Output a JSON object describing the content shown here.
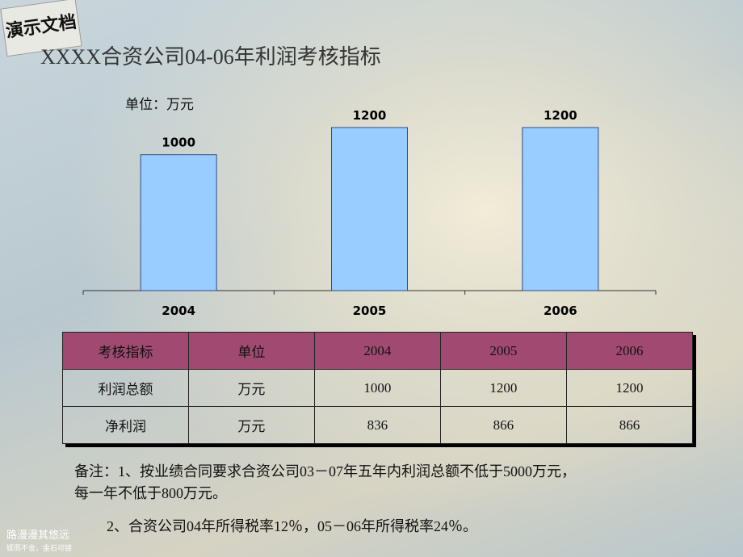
{
  "logo": "演示文档",
  "chart_data": {
    "type": "bar",
    "title": "XXXX合资公司04-06年利润考核指标",
    "unit_label": "单位：万元",
    "categories": [
      "2004",
      "2005",
      "2006"
    ],
    "values": [
      1000,
      1200,
      1200
    ],
    "color": "#99ccff"
  },
  "table": {
    "header": [
      "考核指标",
      "单位",
      "2004",
      "2005",
      "2006"
    ],
    "rows": [
      [
        "利润总额",
        "万元",
        1000,
        1200,
        1200
      ],
      [
        "净利润",
        "万元",
        836,
        866,
        866
      ]
    ]
  },
  "notes": [
    "备注：1、按业绩合同要求合资公司03－07年五年内利润总额不低于5000万元，",
    "每一年不低于800万元。",
    "2、合资公司04年所得税率12％，05－06年所得税率24％。"
  ],
  "footer": [
    "路漫漫其悠远",
    "锲而不舍，金石可镂"
  ]
}
